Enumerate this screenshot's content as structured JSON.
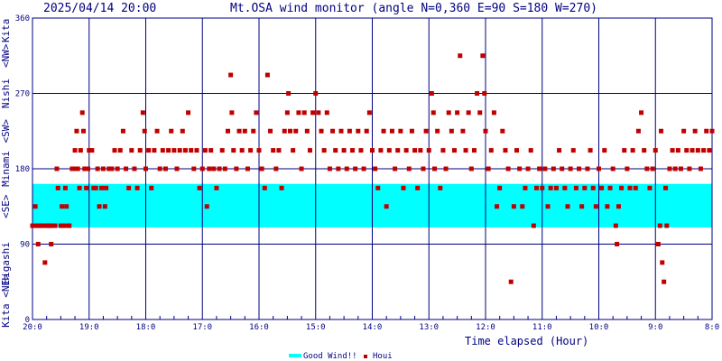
{
  "chart_data": {
    "type": "scatter",
    "datetime": "2025/04/14 20:00",
    "title": "Mt.OSA wind monitor (angle N=0,360 E=90 S=180 W=270)",
    "xlabel": "Time elapsed (Hour)",
    "xlim": [
      0,
      12
    ],
    "ylim": [
      0,
      360
    ],
    "x_ticks": [
      {
        "x": 0,
        "label": "20:0"
      },
      {
        "x": 1,
        "label": "19:0"
      },
      {
        "x": 2,
        "label": "18:0"
      },
      {
        "x": 3,
        "label": "17:0"
      },
      {
        "x": 4,
        "label": "16:0"
      },
      {
        "x": 5,
        "label": "15:0"
      },
      {
        "x": 6,
        "label": "14:0"
      },
      {
        "x": 7,
        "label": "13:0"
      },
      {
        "x": 8,
        "label": "12:0"
      },
      {
        "x": 9,
        "label": "11:0"
      },
      {
        "x": 10,
        "label": "10:0"
      },
      {
        "x": 11,
        "label": "9:0"
      },
      {
        "x": 12,
        "label": "8:0"
      }
    ],
    "y_ticks": [
      {
        "y": 0,
        "label": "0"
      },
      {
        "y": 90,
        "label": "90"
      },
      {
        "y": 180,
        "label": "180"
      },
      {
        "y": 270,
        "label": "270"
      },
      {
        "y": 360,
        "label": "360"
      }
    ],
    "y_direction_labels": [
      {
        "y": 22.5,
        "label": "Kita <NE>"
      },
      {
        "y": 67.5,
        "label": "Higashi"
      },
      {
        "y": 135,
        "label": "<SE>"
      },
      {
        "y": 180,
        "label": "Minami"
      },
      {
        "y": 225,
        "label": "<SW>"
      },
      {
        "y": 270,
        "label": "Nishi"
      },
      {
        "y": 315,
        "label": "<NW>"
      },
      {
        "y": 345,
        "label": "Kita"
      }
    ],
    "good_band": {
      "name": "Good Wind!!",
      "from": 110,
      "to": 162,
      "color": "#00ffff"
    },
    "grid": true,
    "legend": {
      "position": "bottom-center"
    },
    "series": [
      {
        "name": "Houi",
        "color": "#c00000",
        "points": [
          [
            0.0,
            112
          ],
          [
            0.05,
            135
          ],
          [
            0.07,
            112
          ],
          [
            0.1,
            90
          ],
          [
            0.1,
            112
          ],
          [
            0.15,
            112
          ],
          [
            0.18,
            112
          ],
          [
            0.22,
            68
          ],
          [
            0.25,
            112
          ],
          [
            0.28,
            112
          ],
          [
            0.3,
            112
          ],
          [
            0.33,
            90
          ],
          [
            0.35,
            112
          ],
          [
            0.4,
            112
          ],
          [
            0.43,
            180
          ],
          [
            0.45,
            157
          ],
          [
            0.5,
            112
          ],
          [
            0.52,
            135
          ],
          [
            0.55,
            112
          ],
          [
            0.58,
            157
          ],
          [
            0.6,
            135
          ],
          [
            0.63,
            112
          ],
          [
            0.65,
            112
          ],
          [
            0.7,
            180
          ],
          [
            0.73,
            180
          ],
          [
            0.75,
            202
          ],
          [
            0.78,
            225
          ],
          [
            0.8,
            180
          ],
          [
            0.83,
            157
          ],
          [
            0.85,
            202
          ],
          [
            0.88,
            247
          ],
          [
            0.9,
            225
          ],
          [
            0.92,
            180
          ],
          [
            0.95,
            157
          ],
          [
            0.98,
            180
          ],
          [
            1.0,
            202
          ],
          [
            1.05,
            202
          ],
          [
            1.08,
            157
          ],
          [
            1.12,
            157
          ],
          [
            1.15,
            180
          ],
          [
            1.18,
            135
          ],
          [
            1.22,
            157
          ],
          [
            1.25,
            180
          ],
          [
            1.28,
            135
          ],
          [
            1.3,
            157
          ],
          [
            1.35,
            180
          ],
          [
            1.4,
            180
          ],
          [
            1.45,
            202
          ],
          [
            1.5,
            180
          ],
          [
            1.55,
            202
          ],
          [
            1.6,
            225
          ],
          [
            1.65,
            180
          ],
          [
            1.7,
            157
          ],
          [
            1.75,
            202
          ],
          [
            1.8,
            180
          ],
          [
            1.85,
            157
          ],
          [
            1.9,
            202
          ],
          [
            1.95,
            247
          ],
          [
            1.98,
            225
          ],
          [
            2.0,
            180
          ],
          [
            2.05,
            202
          ],
          [
            2.1,
            157
          ],
          [
            2.15,
            202
          ],
          [
            2.2,
            225
          ],
          [
            2.25,
            180
          ],
          [
            2.3,
            202
          ],
          [
            2.35,
            180
          ],
          [
            2.4,
            202
          ],
          [
            2.45,
            225
          ],
          [
            2.5,
            202
          ],
          [
            2.55,
            180
          ],
          [
            2.6,
            202
          ],
          [
            2.65,
            225
          ],
          [
            2.7,
            202
          ],
          [
            2.75,
            247
          ],
          [
            2.8,
            202
          ],
          [
            2.85,
            180
          ],
          [
            2.9,
            202
          ],
          [
            2.95,
            157
          ],
          [
            3.0,
            180
          ],
          [
            3.05,
            202
          ],
          [
            3.08,
            135
          ],
          [
            3.12,
            180
          ],
          [
            3.15,
            202
          ],
          [
            3.2,
            180
          ],
          [
            3.25,
            157
          ],
          [
            3.3,
            180
          ],
          [
            3.35,
            202
          ],
          [
            3.4,
            180
          ],
          [
            3.45,
            225
          ],
          [
            3.5,
            292
          ],
          [
            3.52,
            247
          ],
          [
            3.55,
            202
          ],
          [
            3.6,
            180
          ],
          [
            3.65,
            225
          ],
          [
            3.7,
            202
          ],
          [
            3.75,
            225
          ],
          [
            3.8,
            180
          ],
          [
            3.85,
            202
          ],
          [
            3.9,
            225
          ],
          [
            3.95,
            247
          ],
          [
            4.0,
            202
          ],
          [
            4.05,
            180
          ],
          [
            4.1,
            157
          ],
          [
            4.15,
            292
          ],
          [
            4.2,
            225
          ],
          [
            4.25,
            202
          ],
          [
            4.3,
            180
          ],
          [
            4.35,
            202
          ],
          [
            4.4,
            157
          ],
          [
            4.45,
            225
          ],
          [
            4.5,
            247
          ],
          [
            4.52,
            270
          ],
          [
            4.55,
            225
          ],
          [
            4.6,
            202
          ],
          [
            4.65,
            225
          ],
          [
            4.7,
            247
          ],
          [
            4.75,
            180
          ],
          [
            4.8,
            247
          ],
          [
            4.85,
            225
          ],
          [
            4.9,
            202
          ],
          [
            4.95,
            247
          ],
          [
            5.0,
            270
          ],
          [
            5.05,
            247
          ],
          [
            5.1,
            225
          ],
          [
            5.15,
            202
          ],
          [
            5.2,
            247
          ],
          [
            5.25,
            180
          ],
          [
            5.3,
            225
          ],
          [
            5.35,
            202
          ],
          [
            5.4,
            180
          ],
          [
            5.45,
            225
          ],
          [
            5.5,
            202
          ],
          [
            5.55,
            180
          ],
          [
            5.6,
            225
          ],
          [
            5.65,
            202
          ],
          [
            5.7,
            180
          ],
          [
            5.75,
            225
          ],
          [
            5.8,
            202
          ],
          [
            5.85,
            180
          ],
          [
            5.9,
            225
          ],
          [
            5.95,
            247
          ],
          [
            6.0,
            202
          ],
          [
            6.05,
            180
          ],
          [
            6.1,
            157
          ],
          [
            6.15,
            202
          ],
          [
            6.2,
            225
          ],
          [
            6.25,
            135
          ],
          [
            6.3,
            202
          ],
          [
            6.35,
            225
          ],
          [
            6.4,
            180
          ],
          [
            6.45,
            202
          ],
          [
            6.5,
            225
          ],
          [
            6.55,
            157
          ],
          [
            6.6,
            202
          ],
          [
            6.65,
            180
          ],
          [
            6.7,
            225
          ],
          [
            6.75,
            202
          ],
          [
            6.8,
            157
          ],
          [
            6.85,
            202
          ],
          [
            6.9,
            180
          ],
          [
            6.95,
            225
          ],
          [
            7.0,
            202
          ],
          [
            7.05,
            270
          ],
          [
            7.08,
            247
          ],
          [
            7.1,
            180
          ],
          [
            7.15,
            225
          ],
          [
            7.2,
            157
          ],
          [
            7.25,
            202
          ],
          [
            7.3,
            180
          ],
          [
            7.35,
            247
          ],
          [
            7.4,
            225
          ],
          [
            7.45,
            202
          ],
          [
            7.5,
            247
          ],
          [
            7.55,
            315
          ],
          [
            7.6,
            225
          ],
          [
            7.65,
            202
          ],
          [
            7.7,
            247
          ],
          [
            7.75,
            180
          ],
          [
            7.8,
            202
          ],
          [
            7.85,
            270
          ],
          [
            7.9,
            247
          ],
          [
            7.95,
            315
          ],
          [
            7.98,
            270
          ],
          [
            8.0,
            225
          ],
          [
            8.05,
            180
          ],
          [
            8.1,
            202
          ],
          [
            8.15,
            247
          ],
          [
            8.2,
            135
          ],
          [
            8.25,
            157
          ],
          [
            8.3,
            225
          ],
          [
            8.35,
            202
          ],
          [
            8.4,
            180
          ],
          [
            8.45,
            45
          ],
          [
            8.5,
            135
          ],
          [
            8.55,
            202
          ],
          [
            8.6,
            180
          ],
          [
            8.65,
            135
          ],
          [
            8.7,
            157
          ],
          [
            8.75,
            180
          ],
          [
            8.8,
            202
          ],
          [
            8.85,
            112
          ],
          [
            8.9,
            157
          ],
          [
            8.95,
            180
          ],
          [
            9.0,
            157
          ],
          [
            9.05,
            180
          ],
          [
            9.1,
            135
          ],
          [
            9.15,
            157
          ],
          [
            9.2,
            180
          ],
          [
            9.25,
            157
          ],
          [
            9.3,
            202
          ],
          [
            9.35,
            180
          ],
          [
            9.4,
            157
          ],
          [
            9.45,
            135
          ],
          [
            9.5,
            180
          ],
          [
            9.55,
            202
          ],
          [
            9.6,
            157
          ],
          [
            9.65,
            180
          ],
          [
            9.7,
            135
          ],
          [
            9.75,
            157
          ],
          [
            9.8,
            180
          ],
          [
            9.85,
            202
          ],
          [
            9.9,
            157
          ],
          [
            9.95,
            135
          ],
          [
            10.0,
            180
          ],
          [
            10.05,
            157
          ],
          [
            10.1,
            202
          ],
          [
            10.15,
            135
          ],
          [
            10.2,
            157
          ],
          [
            10.25,
            180
          ],
          [
            10.3,
            112
          ],
          [
            10.32,
            90
          ],
          [
            10.35,
            135
          ],
          [
            10.4,
            157
          ],
          [
            10.45,
            202
          ],
          [
            10.5,
            180
          ],
          [
            10.55,
            157
          ],
          [
            10.6,
            202
          ],
          [
            10.65,
            157
          ],
          [
            10.7,
            225
          ],
          [
            10.75,
            247
          ],
          [
            10.8,
            202
          ],
          [
            10.85,
            180
          ],
          [
            10.9,
            157
          ],
          [
            10.95,
            180
          ],
          [
            11.0,
            202
          ],
          [
            11.05,
            90
          ],
          [
            11.08,
            112
          ],
          [
            11.1,
            225
          ],
          [
            11.12,
            68
          ],
          [
            11.15,
            45
          ],
          [
            11.18,
            157
          ],
          [
            11.2,
            112
          ],
          [
            11.25,
            180
          ],
          [
            11.3,
            202
          ],
          [
            11.35,
            180
          ],
          [
            11.4,
            202
          ],
          [
            11.45,
            180
          ],
          [
            11.5,
            225
          ],
          [
            11.55,
            202
          ],
          [
            11.6,
            180
          ],
          [
            11.65,
            202
          ],
          [
            11.7,
            225
          ],
          [
            11.75,
            202
          ],
          [
            11.8,
            180
          ],
          [
            11.85,
            202
          ],
          [
            11.9,
            225
          ],
          [
            11.95,
            202
          ],
          [
            12.0,
            225
          ]
        ]
      }
    ]
  }
}
